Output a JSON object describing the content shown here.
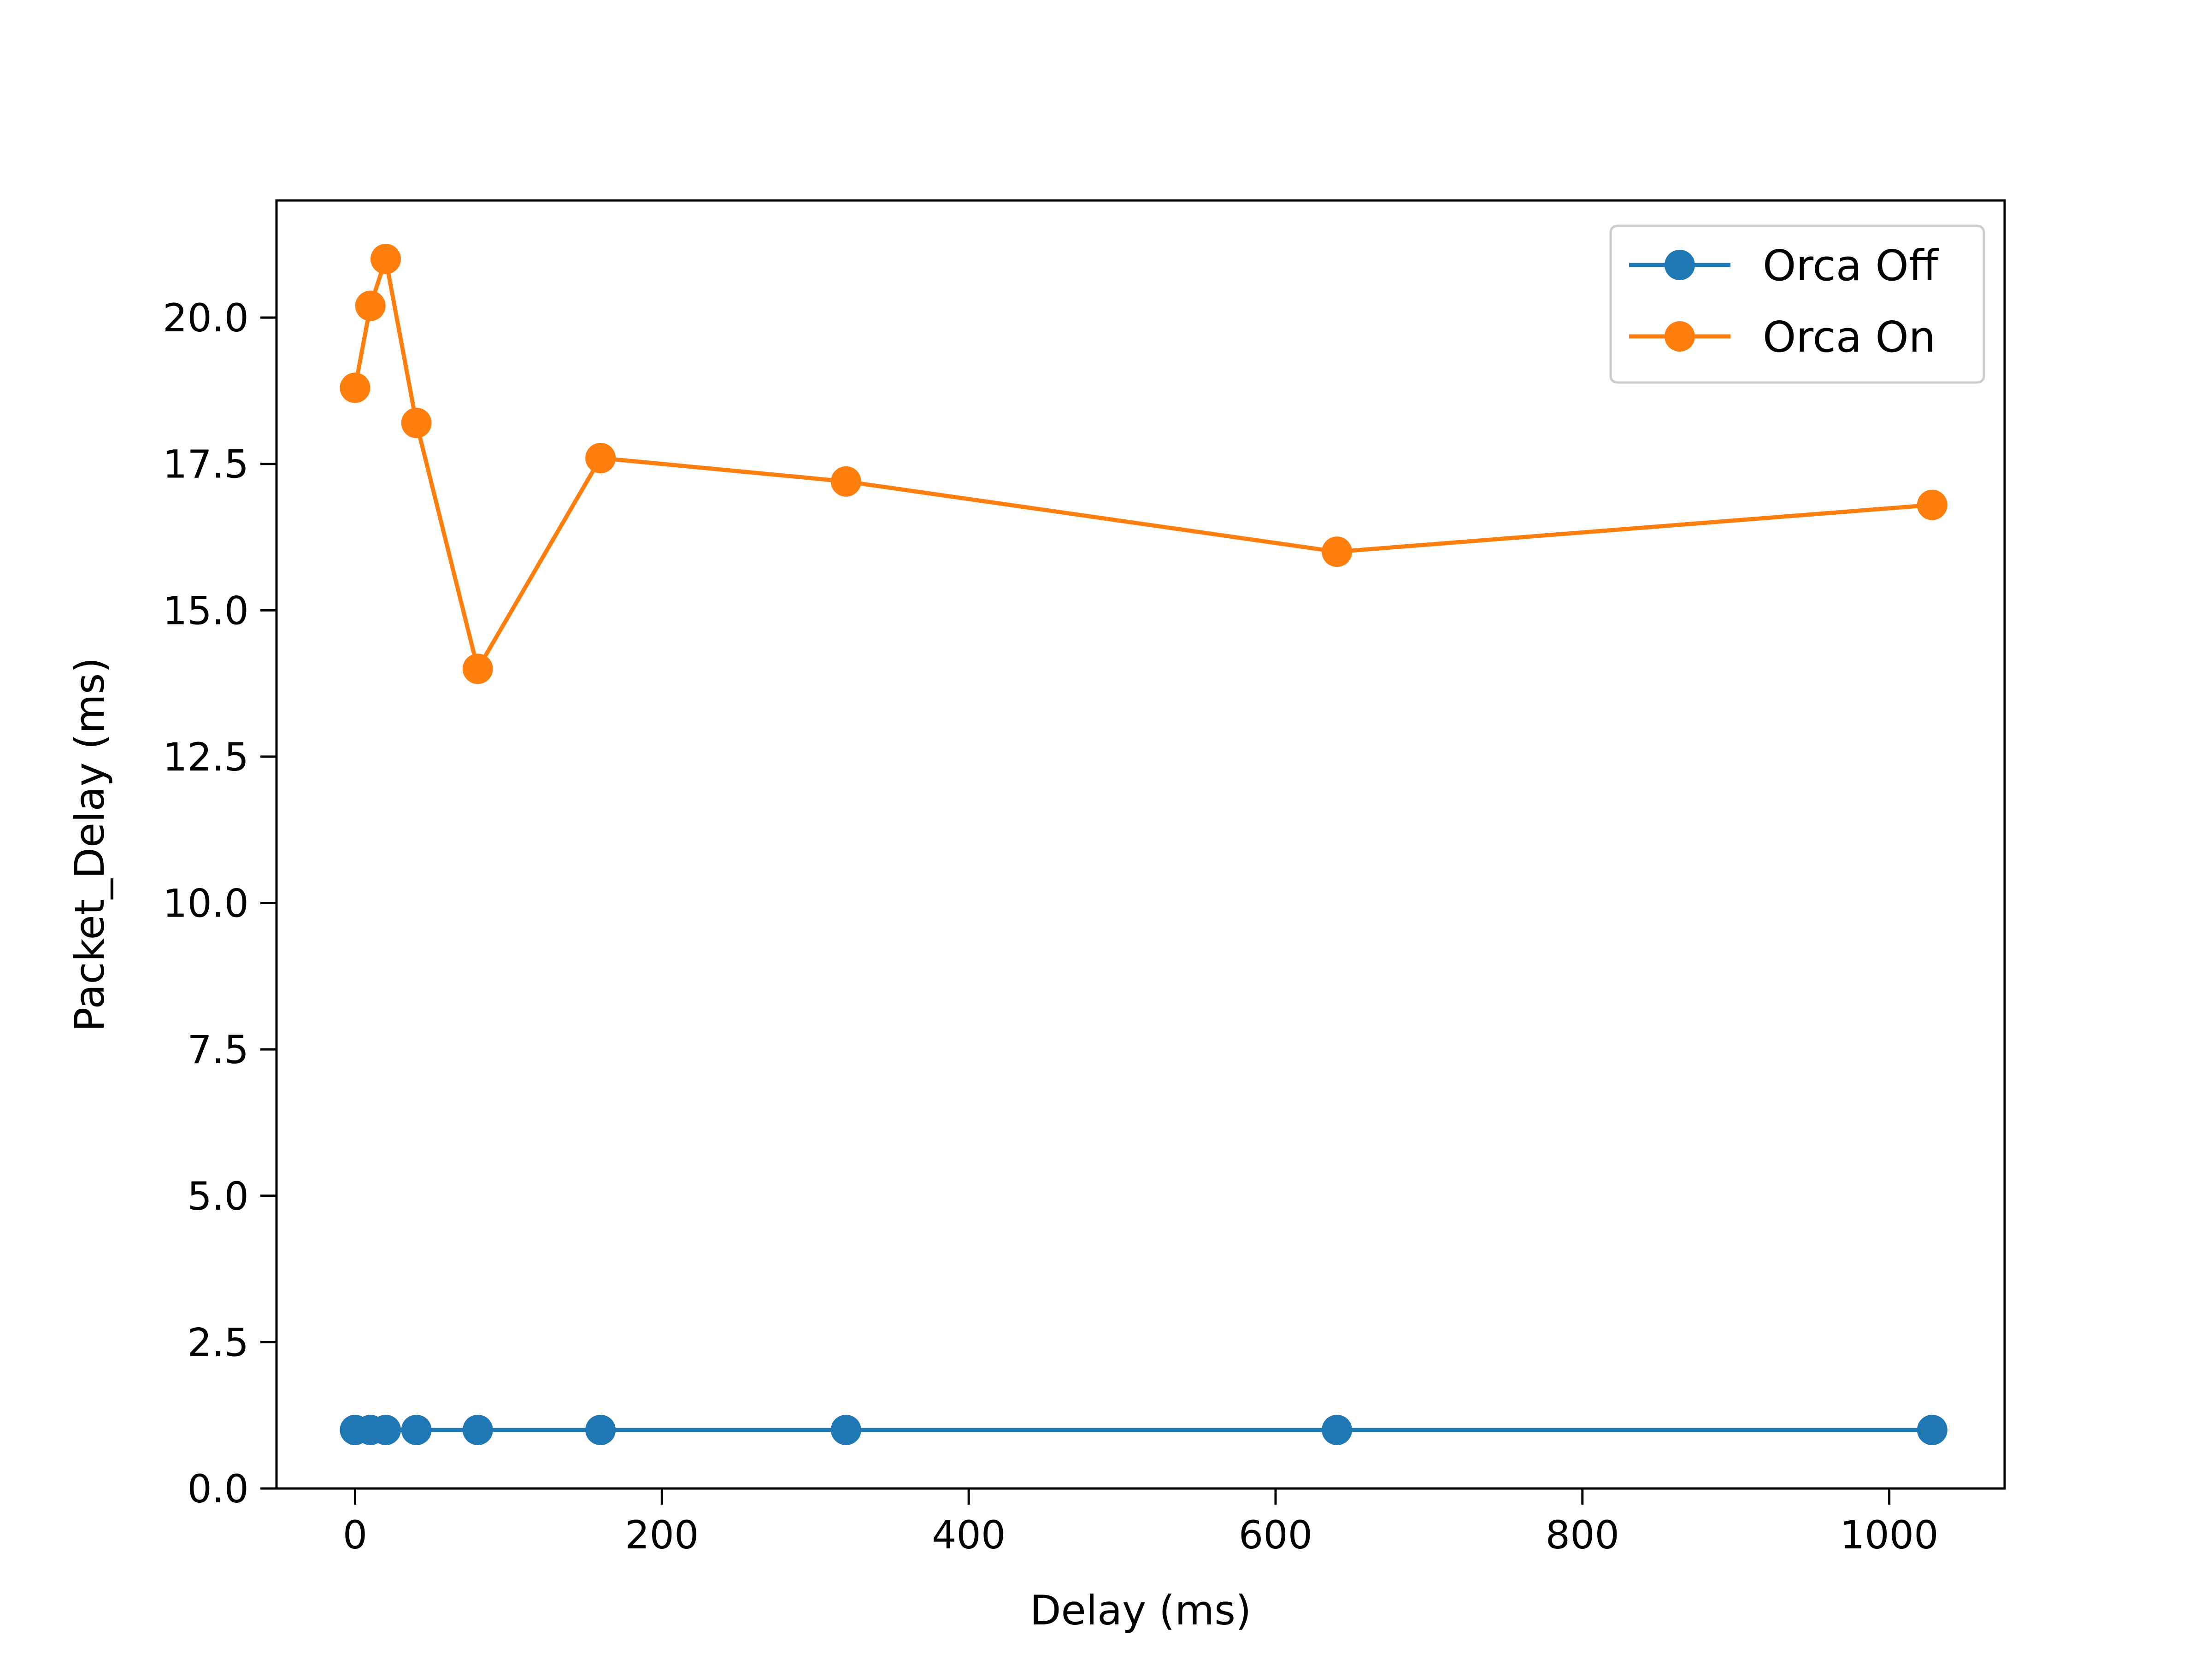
{
  "chart_data": {
    "type": "line",
    "title": "",
    "xlabel": "Delay (ms)",
    "ylabel": "Packet_Delay (ms)",
    "xlim": [
      -51.2,
      1075.2
    ],
    "ylim": [
      0,
      22
    ],
    "xticks": [
      0,
      200,
      400,
      600,
      800,
      1000
    ],
    "xtick_labels": [
      "0",
      "200",
      "400",
      "600",
      "800",
      "1000"
    ],
    "yticks": [
      0,
      2.5,
      5,
      7.5,
      10,
      12.5,
      15,
      17.5,
      20
    ],
    "ytick_labels": [
      "0.0",
      "2.5",
      "5.0",
      "7.5",
      "10.0",
      "12.5",
      "15.0",
      "17.5",
      "20.0"
    ],
    "grid": false,
    "legend": {
      "position": "top-right"
    },
    "x": [
      0,
      10,
      20,
      40,
      80,
      160,
      320,
      640,
      1028
    ],
    "series": [
      {
        "name": "Orca Off",
        "color": "#1f77b4",
        "values": [
          1,
          1,
          1,
          1,
          1,
          1,
          1,
          1,
          1
        ]
      },
      {
        "name": "Orca On",
        "color": "#ff7f0e",
        "values": [
          18.8,
          20.2,
          21.0,
          18.2,
          14.0,
          17.6,
          17.2,
          16.0,
          16.8
        ]
      }
    ]
  }
}
